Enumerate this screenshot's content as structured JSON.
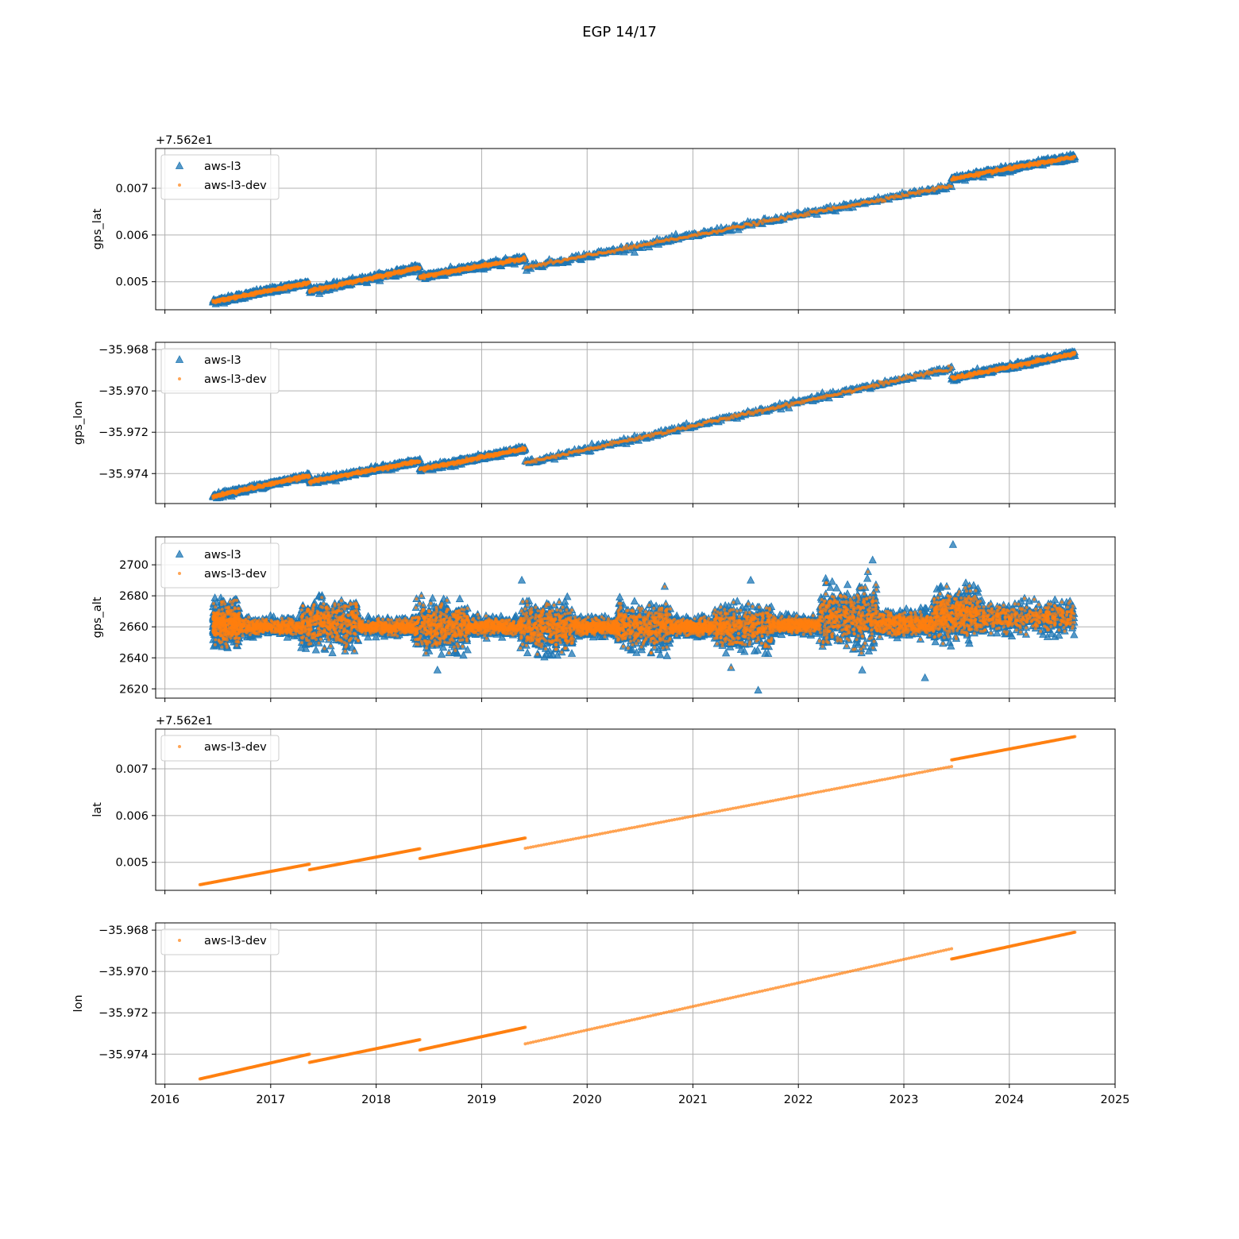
{
  "figure": {
    "title": "EGP 14/17"
  },
  "colors": {
    "aws_l3": "#1f77b4",
    "aws_l3_dev": "#ff7f0e",
    "grid": "#b0b0b0",
    "axes": "#000000"
  },
  "shared_x_axis": {
    "ticks": [
      "2016",
      "2017",
      "2018",
      "2019",
      "2020",
      "2021",
      "2022",
      "2023",
      "2024",
      "2025"
    ]
  },
  "chart_data": [
    {
      "type": "scatter",
      "ylabel": "gps_lat",
      "offset_label": "+7.562e1",
      "xlim": [
        "2015-11-30",
        "2025-01-01"
      ],
      "ylim": [
        0.0044,
        0.00785
      ],
      "yticks": [
        0.005,
        0.006,
        0.007
      ],
      "ytick_labels": [
        "0.005",
        "0.006",
        "0.007"
      ],
      "grid": true,
      "legend": {
        "position": "upper-left",
        "entries": [
          "aws-l3",
          "aws-l3-dev"
        ]
      },
      "series": [
        {
          "name": "aws-l3",
          "marker": "triangle",
          "color": "#1f77b4",
          "noise": 5e-05,
          "segments": [
            {
              "x": [
                "2016-06-15",
                "2017-05-15"
              ],
              "y": [
                0.00457,
                0.00498
              ]
            },
            {
              "x": [
                "2017-05-15",
                "2018-06-01"
              ],
              "y": [
                0.0048,
                0.0053
              ]
            },
            {
              "x": [
                "2018-06-01",
                "2019-06-01"
              ],
              "y": [
                0.0051,
                0.0055
              ]
            },
            {
              "x": [
                "2019-06-01",
                "2023-06-15"
              ],
              "y": [
                0.0053,
                0.00705
              ]
            },
            {
              "x": [
                "2023-06-15",
                "2024-08-15"
              ],
              "y": [
                0.0072,
                0.00767
              ]
            }
          ]
        },
        {
          "name": "aws-l3-dev",
          "marker": "dot",
          "color": "#ff7f0e",
          "noise": 3e-05,
          "segments": [
            {
              "x": [
                "2016-06-15",
                "2017-05-15"
              ],
              "y": [
                0.00457,
                0.00498
              ]
            },
            {
              "x": [
                "2017-05-15",
                "2018-06-01"
              ],
              "y": [
                0.0048,
                0.0053
              ]
            },
            {
              "x": [
                "2018-06-01",
                "2019-06-01"
              ],
              "y": [
                0.0051,
                0.0055
              ]
            },
            {
              "x": [
                "2019-06-01",
                "2023-06-15"
              ],
              "y": [
                0.0053,
                0.00705
              ]
            },
            {
              "x": [
                "2023-06-15",
                "2024-08-15"
              ],
              "y": [
                0.0072,
                0.00767
              ]
            }
          ]
        }
      ]
    },
    {
      "type": "scatter",
      "ylabel": "gps_lon",
      "offset_label": "",
      "xlim": [
        "2015-11-30",
        "2025-01-01"
      ],
      "ylim": [
        -35.97545,
        -35.96765
      ],
      "yticks": [
        -35.974,
        -35.972,
        -35.97,
        -35.968
      ],
      "ytick_labels": [
        "−35.974",
        "−35.972",
        "−35.970",
        "−35.968"
      ],
      "grid": true,
      "legend": {
        "position": "upper-left",
        "entries": [
          "aws-l3",
          "aws-l3-dev"
        ]
      },
      "series": [
        {
          "name": "aws-l3",
          "marker": "triangle",
          "color": "#1f77b4",
          "noise": 0.0001,
          "segments": [
            {
              "x": [
                "2016-06-15",
                "2017-05-15"
              ],
              "y": [
                -35.9751,
                -35.9741
              ]
            },
            {
              "x": [
                "2017-05-15",
                "2018-06-01"
              ],
              "y": [
                -35.9744,
                -35.9734
              ]
            },
            {
              "x": [
                "2018-06-01",
                "2019-06-01"
              ],
              "y": [
                -35.9738,
                -35.9728
              ]
            },
            {
              "x": [
                "2019-06-01",
                "2023-06-15"
              ],
              "y": [
                -35.9735,
                -35.9689
              ]
            },
            {
              "x": [
                "2023-06-15",
                "2024-08-15"
              ],
              "y": [
                -35.9694,
                -35.9682
              ]
            }
          ]
        },
        {
          "name": "aws-l3-dev",
          "marker": "dot",
          "color": "#ff7f0e",
          "noise": 7e-05,
          "segments": [
            {
              "x": [
                "2016-06-15",
                "2017-05-15"
              ],
              "y": [
                -35.9751,
                -35.9741
              ]
            },
            {
              "x": [
                "2017-05-15",
                "2018-06-01"
              ],
              "y": [
                -35.9744,
                -35.9734
              ]
            },
            {
              "x": [
                "2018-06-01",
                "2019-06-01"
              ],
              "y": [
                -35.9738,
                -35.9728
              ]
            },
            {
              "x": [
                "2019-06-01",
                "2023-06-15"
              ],
              "y": [
                -35.9735,
                -35.9689
              ]
            },
            {
              "x": [
                "2023-06-15",
                "2024-08-15"
              ],
              "y": [
                -35.9694,
                -35.9682
              ]
            }
          ]
        }
      ]
    },
    {
      "type": "scatter",
      "ylabel": "gps_alt",
      "offset_label": "",
      "xlim": [
        "2015-11-30",
        "2025-01-01"
      ],
      "ylim": [
        2614,
        2718
      ],
      "yticks": [
        2620,
        2640,
        2660,
        2680,
        2700
      ],
      "ytick_labels": [
        "2620",
        "2640",
        "2660",
        "2680",
        "2700"
      ],
      "grid": true,
      "legend": {
        "position": "upper-left",
        "entries": [
          "aws-l3",
          "aws-l3-dev"
        ]
      },
      "clusters": [
        {
          "x": [
            "2016-06-15",
            "2016-09-15"
          ],
          "center": 2662,
          "spread": 10
        },
        {
          "x": [
            "2016-09-15",
            "2017-04-15"
          ],
          "center": 2660,
          "spread": 4
        },
        {
          "x": [
            "2017-04-15",
            "2017-11-01"
          ],
          "center": 2662,
          "spread": 11
        },
        {
          "x": [
            "2017-11-01",
            "2018-05-15"
          ],
          "center": 2660,
          "spread": 4
        },
        {
          "x": [
            "2018-05-15",
            "2018-11-15"
          ],
          "center": 2660,
          "spread": 11
        },
        {
          "x": [
            "2018-11-15",
            "2019-05-15"
          ],
          "center": 2660,
          "spread": 4
        },
        {
          "x": [
            "2019-05-15",
            "2019-11-15"
          ],
          "center": 2660,
          "spread": 11
        },
        {
          "x": [
            "2019-11-15",
            "2020-04-15"
          ],
          "center": 2660,
          "spread": 4
        },
        {
          "x": [
            "2020-04-15",
            "2020-10-15"
          ],
          "center": 2660,
          "spread": 11
        },
        {
          "x": [
            "2020-10-15",
            "2021-03-15"
          ],
          "center": 2660,
          "spread": 4
        },
        {
          "x": [
            "2021-03-15",
            "2021-10-01"
          ],
          "center": 2660,
          "spread": 10
        },
        {
          "x": [
            "2021-10-01",
            "2022-03-15"
          ],
          "center": 2661,
          "spread": 4
        },
        {
          "x": [
            "2022-03-15",
            "2022-10-01"
          ],
          "center": 2666,
          "spread": 14
        },
        {
          "x": [
            "2022-10-01",
            "2023-04-15"
          ],
          "center": 2662,
          "spread": 6
        },
        {
          "x": [
            "2023-04-15",
            "2023-09-15"
          ],
          "center": 2668,
          "spread": 12
        },
        {
          "x": [
            "2023-09-15",
            "2024-08-15"
          ],
          "center": 2666,
          "spread": 7
        }
      ],
      "outliers": [
        {
          "x": "2021-08-15",
          "y": 2619
        },
        {
          "x": "2023-03-15",
          "y": 2627
        },
        {
          "x": "2023-06-20",
          "y": 2713
        },
        {
          "x": "2022-09-15",
          "y": 2703
        },
        {
          "x": "2019-05-20",
          "y": 2690
        },
        {
          "x": "2021-07-20",
          "y": 2690
        },
        {
          "x": "2018-08-01",
          "y": 2632
        },
        {
          "x": "2022-08-10",
          "y": 2632
        }
      ],
      "series": [
        {
          "name": "aws-l3",
          "marker": "triangle",
          "color": "#1f77b4"
        },
        {
          "name": "aws-l3-dev",
          "marker": "dot",
          "color": "#ff7f0e"
        }
      ]
    },
    {
      "type": "scatter",
      "ylabel": "lat",
      "offset_label": "+7.562e1",
      "xlim": [
        "2015-11-30",
        "2025-01-01"
      ],
      "ylim": [
        0.0044,
        0.00785
      ],
      "yticks": [
        0.005,
        0.006,
        0.007
      ],
      "ytick_labels": [
        "0.005",
        "0.006",
        "0.007"
      ],
      "grid": true,
      "legend": {
        "position": "upper-left",
        "entries": [
          "aws-l3-dev"
        ]
      },
      "series": [
        {
          "name": "aws-l3-dev",
          "marker": "dot",
          "color": "#ff7f0e",
          "noise": 0,
          "segments": [
            {
              "x": [
                "2016-05-01",
                "2017-05-15"
              ],
              "y": [
                0.00452,
                0.00496
              ]
            },
            {
              "x": [
                "2017-05-15",
                "2018-06-01"
              ],
              "y": [
                0.00484,
                0.00529
              ]
            },
            {
              "x": [
                "2018-06-01",
                "2019-06-01"
              ],
              "y": [
                0.00508,
                0.00552
              ]
            },
            {
              "x": [
                "2019-06-01",
                "2023-06-15"
              ],
              "y": [
                0.0053,
                0.00705
              ]
            },
            {
              "x": [
                "2023-06-15",
                "2024-08-15"
              ],
              "y": [
                0.00719,
                0.00769
              ]
            }
          ]
        }
      ]
    },
    {
      "type": "scatter",
      "ylabel": "lon",
      "offset_label": "",
      "xlim": [
        "2015-11-30",
        "2025-01-01"
      ],
      "ylim": [
        -35.97545,
        -35.96765
      ],
      "yticks": [
        -35.974,
        -35.972,
        -35.97,
        -35.968
      ],
      "ytick_labels": [
        "−35.974",
        "−35.972",
        "−35.970",
        "−35.968"
      ],
      "grid": true,
      "legend": {
        "position": "upper-left",
        "entries": [
          "aws-l3-dev"
        ]
      },
      "series": [
        {
          "name": "aws-l3-dev",
          "marker": "dot",
          "color": "#ff7f0e",
          "noise": 0,
          "segments": [
            {
              "x": [
                "2016-05-01",
                "2017-05-15"
              ],
              "y": [
                -35.9752,
                -35.974
              ]
            },
            {
              "x": [
                "2017-05-15",
                "2018-06-01"
              ],
              "y": [
                -35.9744,
                -35.9733
              ]
            },
            {
              "x": [
                "2018-06-01",
                "2019-06-01"
              ],
              "y": [
                -35.9738,
                -35.9727
              ]
            },
            {
              "x": [
                "2019-06-01",
                "2023-06-15"
              ],
              "y": [
                -35.9735,
                -35.9689
              ]
            },
            {
              "x": [
                "2023-06-15",
                "2024-08-15"
              ],
              "y": [
                -35.9694,
                -35.9681
              ]
            }
          ]
        }
      ]
    }
  ]
}
